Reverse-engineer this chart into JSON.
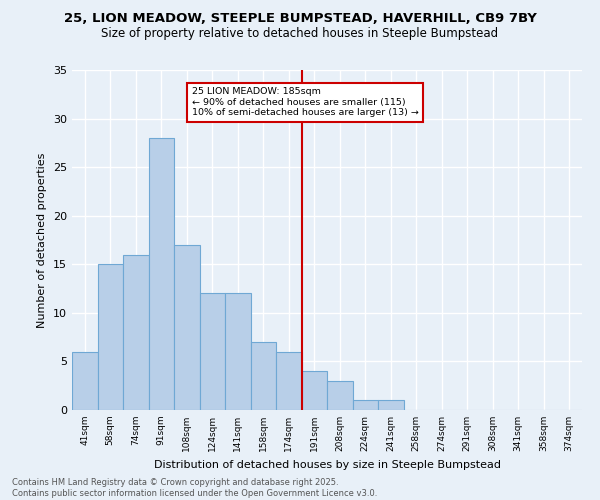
{
  "title1": "25, LION MEADOW, STEEPLE BUMPSTEAD, HAVERHILL, CB9 7BY",
  "title2": "Size of property relative to detached houses in Steeple Bumpstead",
  "xlabel": "Distribution of detached houses by size in Steeple Bumpstead",
  "ylabel": "Number of detached properties",
  "footnote": "Contains HM Land Registry data © Crown copyright and database right 2025.\nContains public sector information licensed under the Open Government Licence v3.0.",
  "bin_labels": [
    "41sqm",
    "58sqm",
    "74sqm",
    "91sqm",
    "108sqm",
    "124sqm",
    "141sqm",
    "158sqm",
    "174sqm",
    "191sqm",
    "208sqm",
    "224sqm",
    "241sqm",
    "258sqm",
    "274sqm",
    "291sqm",
    "308sqm",
    "341sqm",
    "358sqm",
    "374sqm"
  ],
  "bar_values": [
    6,
    15,
    16,
    28,
    17,
    12,
    12,
    7,
    6,
    4,
    3,
    1,
    1,
    0,
    0,
    0,
    0,
    0,
    0,
    0
  ],
  "bar_color": "#b8cfe8",
  "bar_edge_color": "#6fa8d4",
  "background_color": "#e8f0f8",
  "grid_color": "#ffffff",
  "redline_x": 8.5,
  "annotation_title": "25 LION MEADOW: 185sqm",
  "annotation_line1": "← 90% of detached houses are smaller (115)",
  "annotation_line2": "10% of semi-detached houses are larger (13) →",
  "annotation_box_color": "#ffffff",
  "annotation_border_color": "#cc0000",
  "redline_color": "#cc0000",
  "ylim": [
    0,
    35
  ],
  "yticks": [
    0,
    5,
    10,
    15,
    20,
    25,
    30,
    35
  ]
}
